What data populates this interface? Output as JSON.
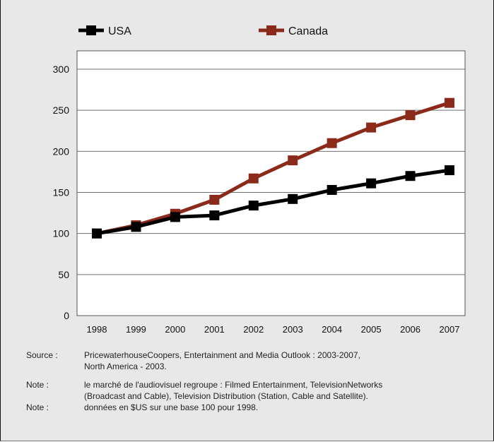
{
  "chart_data": {
    "type": "line",
    "title": "",
    "xlabel": "",
    "ylabel": "",
    "categories": [
      "1998",
      "1999",
      "2000",
      "2001",
      "2002",
      "2003",
      "2004",
      "2005",
      "2006",
      "2007"
    ],
    "ylim": [
      0,
      300
    ],
    "yticks": [
      "0",
      "50",
      "100",
      "150",
      "200",
      "250",
      "300"
    ],
    "grid": "horizontal",
    "legend_position": "top",
    "series": [
      {
        "name": "USA",
        "color": "#000000",
        "marker": "square",
        "values": [
          100,
          108,
          120,
          122,
          134,
          142,
          153,
          161,
          170,
          177
        ]
      },
      {
        "name": "Canada",
        "color": "#8b2a1a",
        "marker": "square",
        "values": [
          100,
          110,
          124,
          141,
          167,
          189,
          210,
          229,
          244,
          259
        ]
      }
    ]
  },
  "footnotes": {
    "source_label": "Source :",
    "source_line1": "PricewaterhouseCoopers,  Entertainment and Media Outlook : 2003-2007,",
    "source_line2": "North America - 2003.",
    "note1_label": "Note :",
    "note1_line1": "le marché de l'audiovisuel regroupe :  Filmed Entertainment, TelevisionNetworks",
    "note1_line2": "(Broadcast and Cable), Television Distribution (Station, Cable and Satellite).",
    "note2_label": "Note :",
    "note2_line1": "données en $US sur une base 100 pour 1998."
  }
}
